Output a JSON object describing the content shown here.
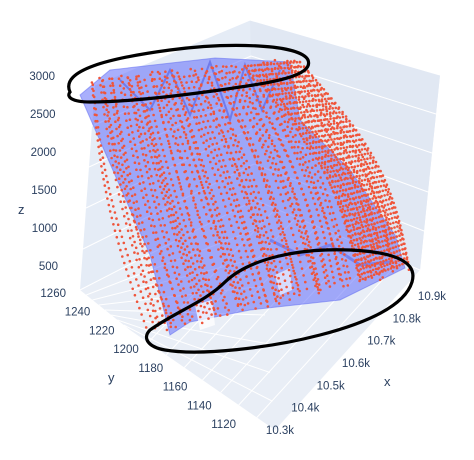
{
  "chart_data": {
    "type": "scatter3d",
    "colors": {
      "points": "#ef553b",
      "mesh": "#636efa",
      "annotation": "#000000"
    },
    "axes": {
      "x": {
        "title": "x",
        "ticks": [
          "10.3k",
          "10.4k",
          "10.5k",
          "10.6k",
          "10.7k",
          "10.8k",
          "10.9k"
        ],
        "range": [
          10250,
          10950
        ]
      },
      "y": {
        "title": "y",
        "ticks": [
          "1120",
          "1140",
          "1160",
          "1180",
          "1200",
          "1220",
          "1240",
          "1260"
        ],
        "range": [
          1115,
          1265
        ]
      },
      "z": {
        "title": "z",
        "ticks": [
          "500",
          "1000",
          "1500",
          "2000",
          "2500",
          "3000"
        ],
        "range": [
          200,
          3100
        ]
      }
    },
    "series": [
      {
        "type": "scatter3d",
        "mode": "markers"
      },
      {
        "type": "mesh3d",
        "opacity": 0.5
      }
    ],
    "annotations": [
      {
        "shape": "freehand-ellipse",
        "region": "top of surface"
      },
      {
        "shape": "freehand-ellipse",
        "region": "bottom of surface"
      }
    ],
    "grid": true
  }
}
